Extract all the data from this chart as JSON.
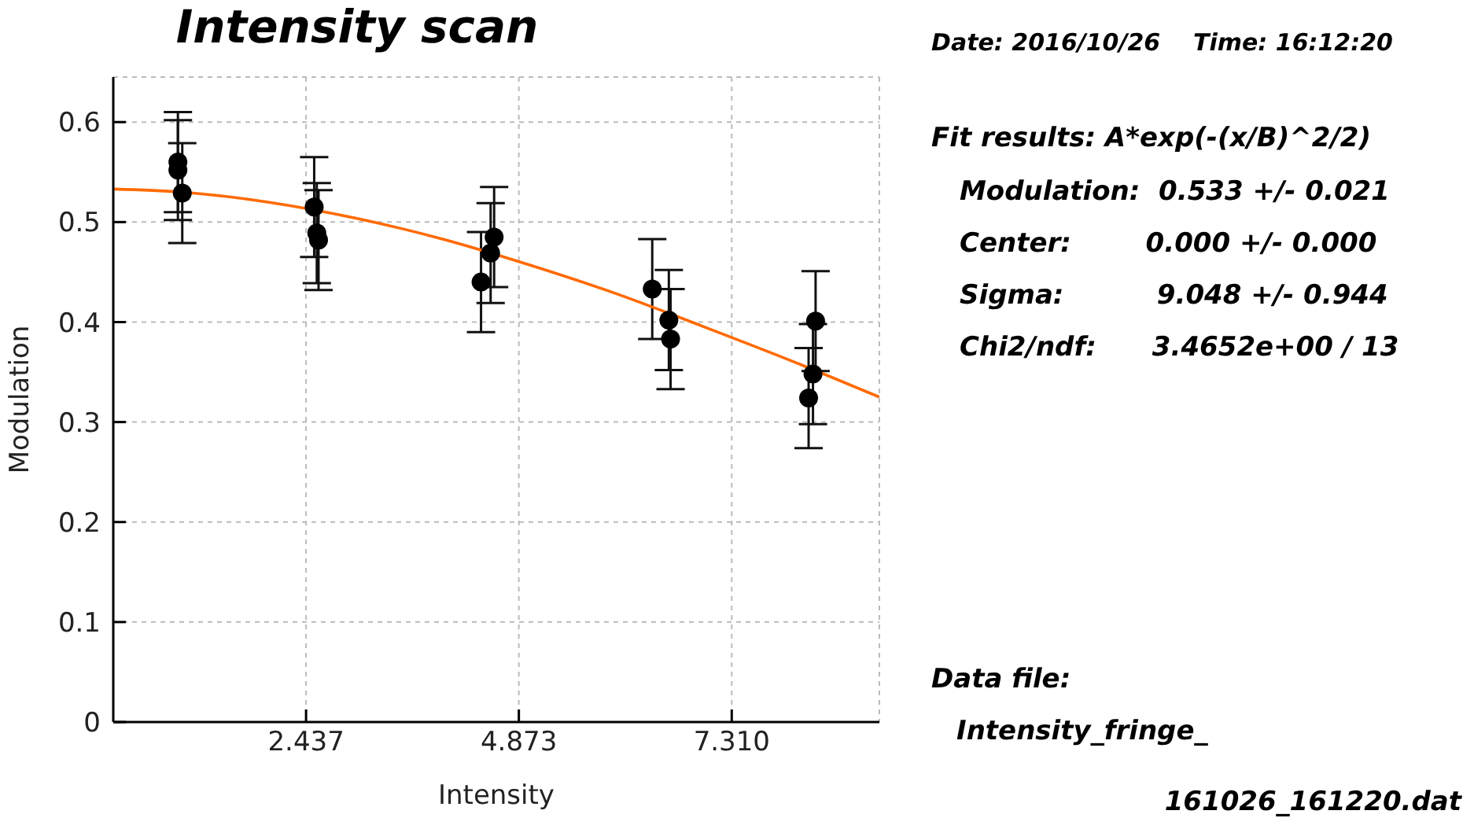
{
  "chart_data": {
    "type": "scatter",
    "title": "Intensity scan",
    "xlabel": "Intensity",
    "ylabel": "Modulation",
    "xlim": [
      0.23,
      9.0
    ],
    "ylim": [
      0,
      0.645
    ],
    "xticks": [
      {
        "value": 2.437,
        "label": "2.437"
      },
      {
        "value": 4.873,
        "label": "4.873"
      },
      {
        "value": 7.31,
        "label": "7.310"
      }
    ],
    "yticks": [
      0,
      0.1,
      0.2,
      0.3,
      0.4,
      0.5,
      0.6
    ],
    "grid": true,
    "series": [
      {
        "marker": "circle",
        "color": "#000000",
        "x": [
          0.97,
          0.97,
          1.02,
          2.53,
          2.56,
          2.58,
          4.44,
          4.55,
          4.59,
          6.4,
          6.59,
          6.61,
          8.19,
          8.24,
          8.27
        ],
        "values": [
          0.56,
          0.552,
          0.529,
          0.515,
          0.489,
          0.482,
          0.44,
          0.469,
          0.485,
          0.433,
          0.402,
          0.383,
          0.324,
          0.348,
          0.401
        ],
        "errors": [
          0.05,
          0.05,
          0.05,
          0.05,
          0.05,
          0.05,
          0.05,
          0.05,
          0.05,
          0.05,
          0.05,
          0.05,
          0.05,
          0.05,
          0.05
        ]
      },
      {
        "type": "line",
        "color": "#ff6a00",
        "x": [
          0.23,
          1,
          2,
          3,
          4,
          5,
          6,
          7,
          8,
          9
        ],
        "values": [
          0.533,
          0.53,
          0.52,
          0.504,
          0.483,
          0.457,
          0.428,
          0.395,
          0.361,
          0.325
        ]
      }
    ],
    "annotations": [
      "Date: 2016/10/26    Time: 16:12:20",
      "Fit results: A*exp(-(x/B)^2/2)",
      "Modulation:  0.533 +/- 0.021",
      "Center:        0.000 +/- 0.000",
      "Sigma:          9.048 +/- 0.944",
      "Chi2/ndf:      3.4652e+00 / 13",
      "Data file:",
      "Intensity_fringe_",
      "161026_161220.dat"
    ]
  }
}
